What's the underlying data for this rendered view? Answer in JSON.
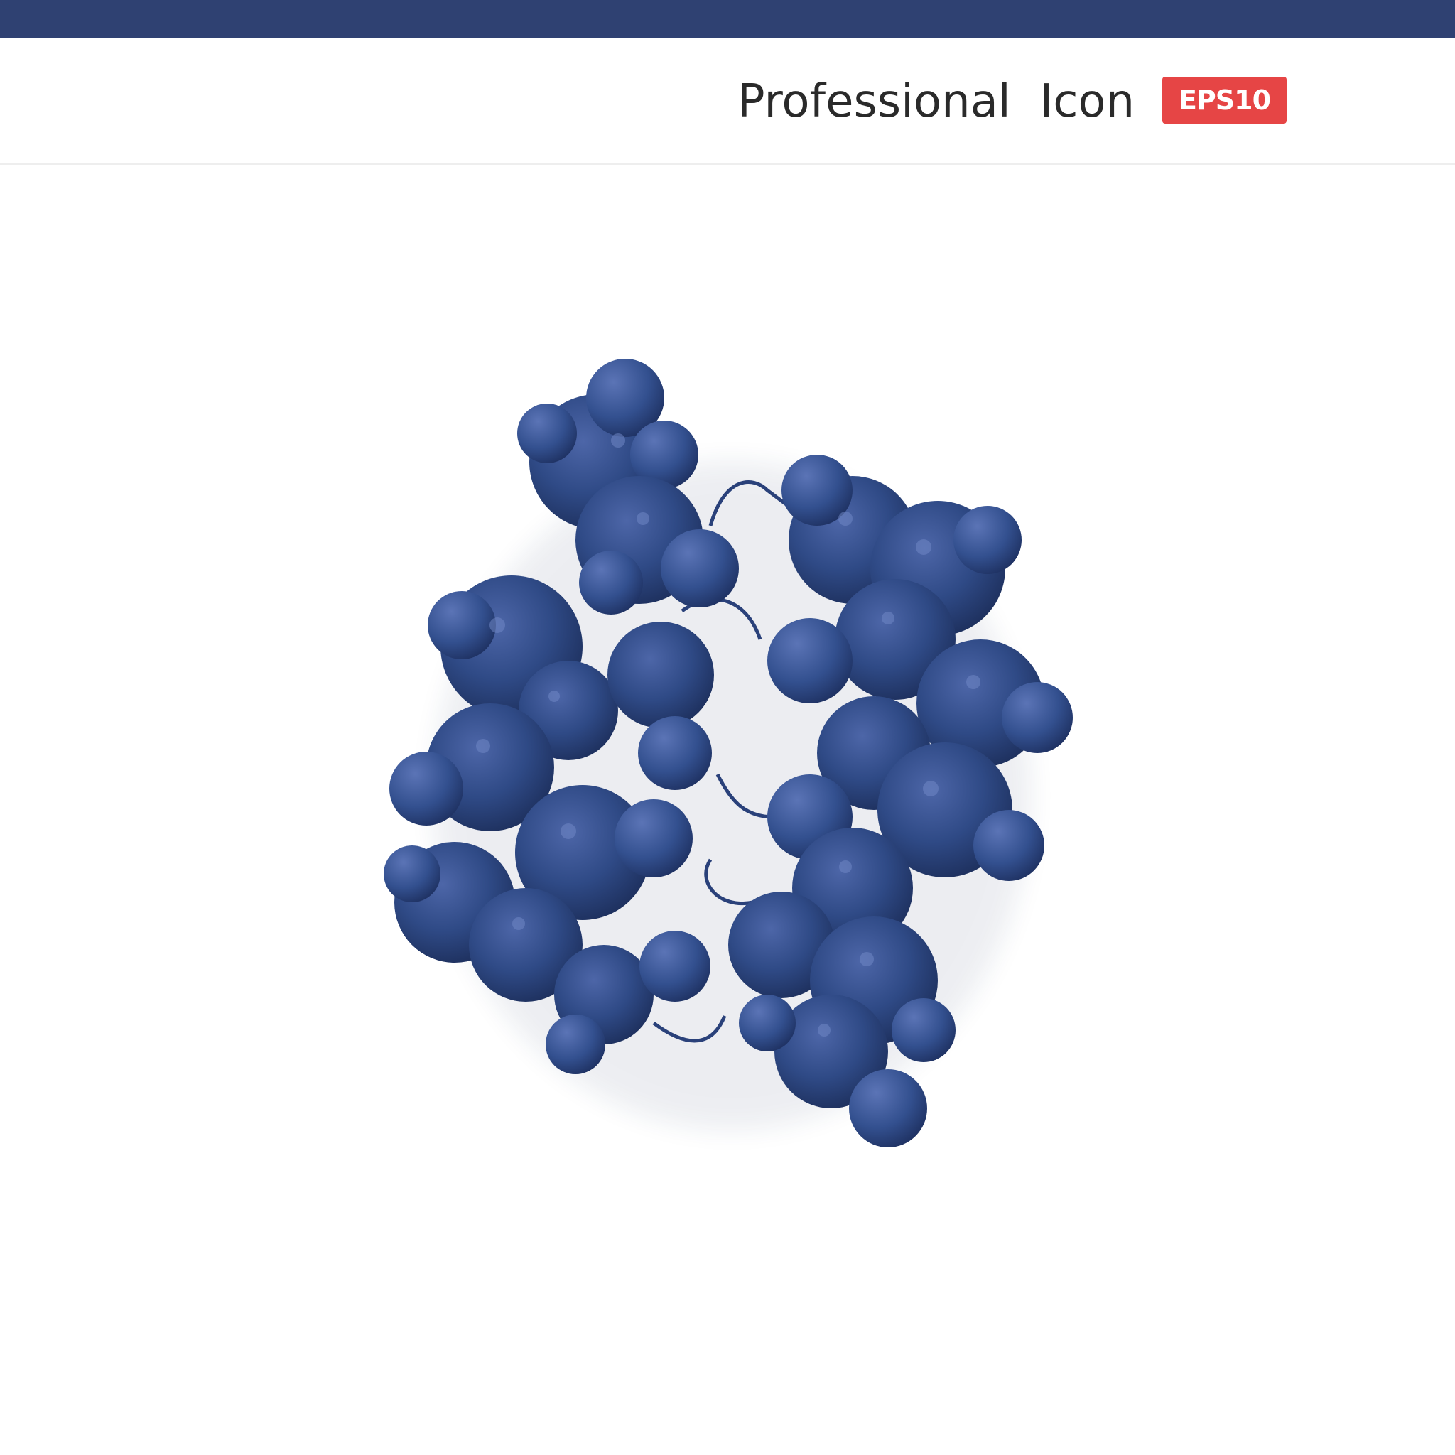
{
  "header": {
    "title": "Professional  Icon",
    "badge": "EPS10"
  },
  "colors": {
    "top_bar": "#2f4172",
    "molecule": "#2f4a86",
    "badge": "#e64545"
  },
  "illustration": {
    "icon": "protein-molecule-icon"
  }
}
